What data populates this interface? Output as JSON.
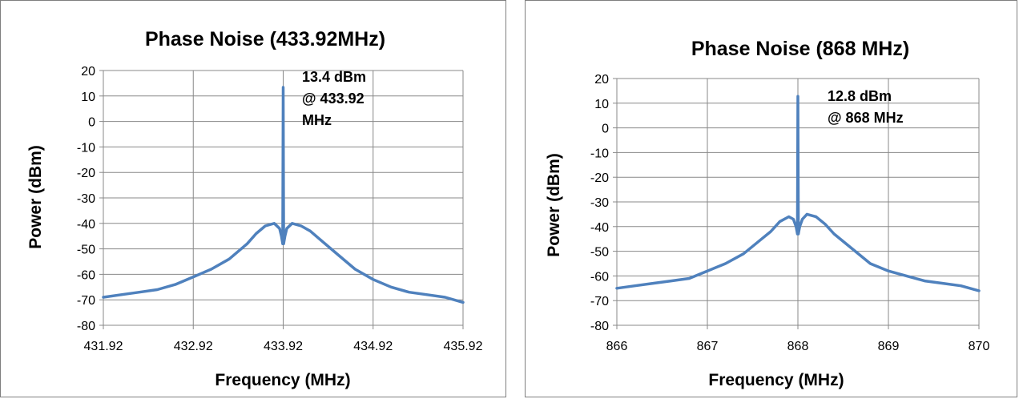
{
  "chart_data": [
    {
      "type": "line",
      "title": "Phase Noise (433.92MHz)",
      "xlabel": "Frequency (MHz)",
      "ylabel": "Power (dBm)",
      "xlim": [
        431.92,
        435.92
      ],
      "ylim": [
        -80,
        20
      ],
      "x_ticks": [
        "431.92",
        "432.92",
        "433.92",
        "434.92",
        "435.92"
      ],
      "y_ticks": [
        "20",
        "10",
        "0",
        "-10",
        "-20",
        "-30",
        "-40",
        "-50",
        "-60",
        "-70",
        "-80"
      ],
      "grid": true,
      "legend": "none",
      "annotation": [
        "13.4 dBm",
        "@ 433.92",
        "MHz"
      ],
      "series": [
        {
          "color": "#4f81bd",
          "x": [
            431.92,
            432.12,
            432.32,
            432.52,
            432.72,
            432.92,
            433.12,
            433.32,
            433.52,
            433.62,
            433.72,
            433.82,
            433.88,
            433.9,
            433.91,
            433.915,
            433.92,
            433.925,
            433.93,
            433.94,
            433.96,
            434.02,
            434.12,
            434.22,
            434.32,
            434.52,
            434.72,
            434.92,
            435.12,
            435.32,
            435.52,
            435.72,
            435.92
          ],
          "y": [
            -69,
            -68,
            -67,
            -66,
            -64,
            -61,
            -58,
            -54,
            -48,
            -44,
            -41,
            -40,
            -42,
            -45,
            -47,
            -48,
            13.4,
            -48,
            -47,
            -45,
            -42,
            -40,
            -41,
            -43,
            -46,
            -52,
            -58,
            -62,
            -65,
            -67,
            -68,
            -69,
            -71
          ]
        }
      ]
    },
    {
      "type": "line",
      "title": "Phase Noise (868 MHz)",
      "xlabel": "Frequency (MHz)",
      "ylabel": "Power (dBm)",
      "xlim": [
        866,
        870
      ],
      "ylim": [
        -80,
        20
      ],
      "x_ticks": [
        "866",
        "867",
        "868",
        "869",
        "870"
      ],
      "y_ticks": [
        "20",
        "10",
        "0",
        "-10",
        "-20",
        "-30",
        "-40",
        "-50",
        "-60",
        "-70",
        "-80"
      ],
      "grid": true,
      "legend": "none",
      "annotation": [
        "12.8 dBm",
        "@ 868 MHz"
      ],
      "series": [
        {
          "color": "#4f81bd",
          "x": [
            866,
            866.2,
            866.4,
            866.6,
            866.8,
            867,
            867.2,
            867.4,
            867.6,
            867.7,
            867.8,
            867.9,
            867.95,
            867.98,
            867.99,
            867.995,
            868,
            868.005,
            868.01,
            868.02,
            868.05,
            868.1,
            868.2,
            868.3,
            868.4,
            868.6,
            868.8,
            869,
            869.2,
            869.4,
            869.6,
            869.8,
            870
          ],
          "y": [
            -65,
            -64,
            -63,
            -62,
            -61,
            -58,
            -55,
            -51,
            -45,
            -42,
            -38,
            -36,
            -37,
            -40,
            -42,
            -43,
            12.8,
            -43,
            -42,
            -40,
            -37,
            -35,
            -36,
            -39,
            -43,
            -49,
            -55,
            -58,
            -60,
            -62,
            -63,
            -64,
            -66
          ]
        }
      ]
    }
  ]
}
